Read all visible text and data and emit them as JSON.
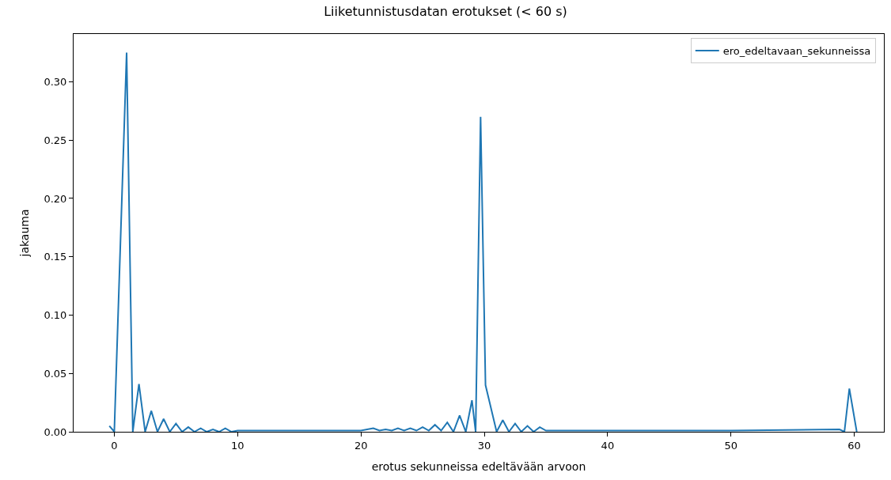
{
  "chart_data": {
    "type": "line",
    "title": "Liiketunnistusdatan erotukset (< 60 s)",
    "xlabel": "erotus sekunneissa edeltävään arvoon",
    "ylabel": "jakauma",
    "x": [
      -0.4,
      0,
      1,
      1.5,
      2,
      2.5,
      3,
      3.5,
      4,
      4.5,
      5,
      5.5,
      6,
      6.5,
      7,
      7.5,
      8,
      8.5,
      9,
      9.5,
      10,
      15,
      20,
      21,
      21.5,
      22,
      22.5,
      23,
      23.5,
      24,
      24.5,
      25,
      25.5,
      26,
      26.5,
      27,
      27.5,
      28,
      28.5,
      29,
      29.3,
      29.7,
      30.1,
      31,
      31.5,
      32,
      32.5,
      33,
      33.5,
      34,
      34.5,
      35,
      40,
      50,
      58.8,
      59.2,
      59.6,
      60.2
    ],
    "series": [
      {
        "name": "ero_edeltavaan_sekunneissa",
        "color": "#1f77b4",
        "values": [
          0.005,
          0,
          0.325,
          0,
          0.041,
          0,
          0.018,
          0,
          0.011,
          0,
          0.007,
          0,
          0.004,
          0,
          0.003,
          0,
          0.002,
          0,
          0.003,
          0,
          0.001,
          0.001,
          0.001,
          0.003,
          0.001,
          0.002,
          0.001,
          0.003,
          0.001,
          0.003,
          0.001,
          0.004,
          0.001,
          0.006,
          0.001,
          0.008,
          0,
          0.014,
          0,
          0.027,
          0,
          0.27,
          0.04,
          0,
          0.01,
          0,
          0.007,
          0,
          0.005,
          0,
          0.004,
          0.001,
          0.001,
          0.001,
          0.002,
          0,
          0.037,
          0
        ]
      }
    ],
    "xlim": [
      -3.3,
      62.4
    ],
    "xticks": [
      0,
      10,
      20,
      30,
      40,
      50,
      60
    ],
    "ylim": [
      0,
      0.341
    ],
    "yticks": [
      {
        "value": 0,
        "label": "0.00"
      },
      {
        "value": 0.05,
        "label": "0.05"
      },
      {
        "value": 0.1,
        "label": "0.10"
      },
      {
        "value": 0.15,
        "label": "0.15"
      },
      {
        "value": 0.2,
        "label": "0.20"
      },
      {
        "value": 0.25,
        "label": "0.25"
      },
      {
        "value": 0.3,
        "label": "0.30"
      }
    ],
    "legend": "top right"
  }
}
